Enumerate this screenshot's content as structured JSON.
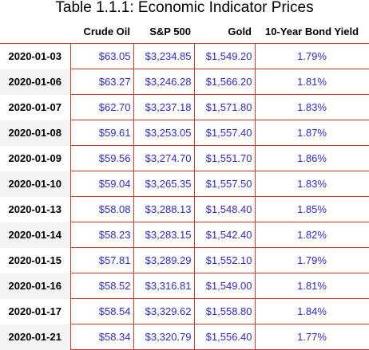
{
  "title": "Table 1.1.1: Economic Indicator Prices",
  "columns": [
    "",
    "Crude Oil",
    "S&P 500",
    "Gold",
    "10-Year Bond Yield"
  ],
  "colors": {
    "value_text": "#2b2bd1",
    "cell_border": "#d43a2c",
    "alt_row_bg": "#f3f3f3"
  },
  "rows": [
    [
      "2020-01-03",
      "$63.05",
      "$3,234.85",
      "$1,549.20",
      "1.79%"
    ],
    [
      "2020-01-06",
      "$63.27",
      "$3,246.28",
      "$1,566.20",
      "1.81%"
    ],
    [
      "2020-01-07",
      "$62.70",
      "$3,237.18",
      "$1,571.80",
      "1.83%"
    ],
    [
      "2020-01-08",
      "$59.61",
      "$3,253.05",
      "$1,557.40",
      "1.87%"
    ],
    [
      "2020-01-09",
      "$59.56",
      "$3,274.70",
      "$1,551.70",
      "1.86%"
    ],
    [
      "2020-01-10",
      "$59.04",
      "$3,265.35",
      "$1,557.50",
      "1.83%"
    ],
    [
      "2020-01-13",
      "$58.08",
      "$3,288.13",
      "$1,548.40",
      "1.85%"
    ],
    [
      "2020-01-14",
      "$58.23",
      "$3,283.15",
      "$1,542.40",
      "1.82%"
    ],
    [
      "2020-01-15",
      "$57.81",
      "$3,289.29",
      "$1,552.10",
      "1.79%"
    ],
    [
      "2020-01-16",
      "$58.52",
      "$3,316.81",
      "$1,549.00",
      "1.81%"
    ],
    [
      "2020-01-17",
      "$58.54",
      "$3,329.62",
      "$1,558.80",
      "1.84%"
    ],
    [
      "2020-01-21",
      "$58.34",
      "$3,320.79",
      "$1,556.40",
      "1.77%"
    ]
  ]
}
